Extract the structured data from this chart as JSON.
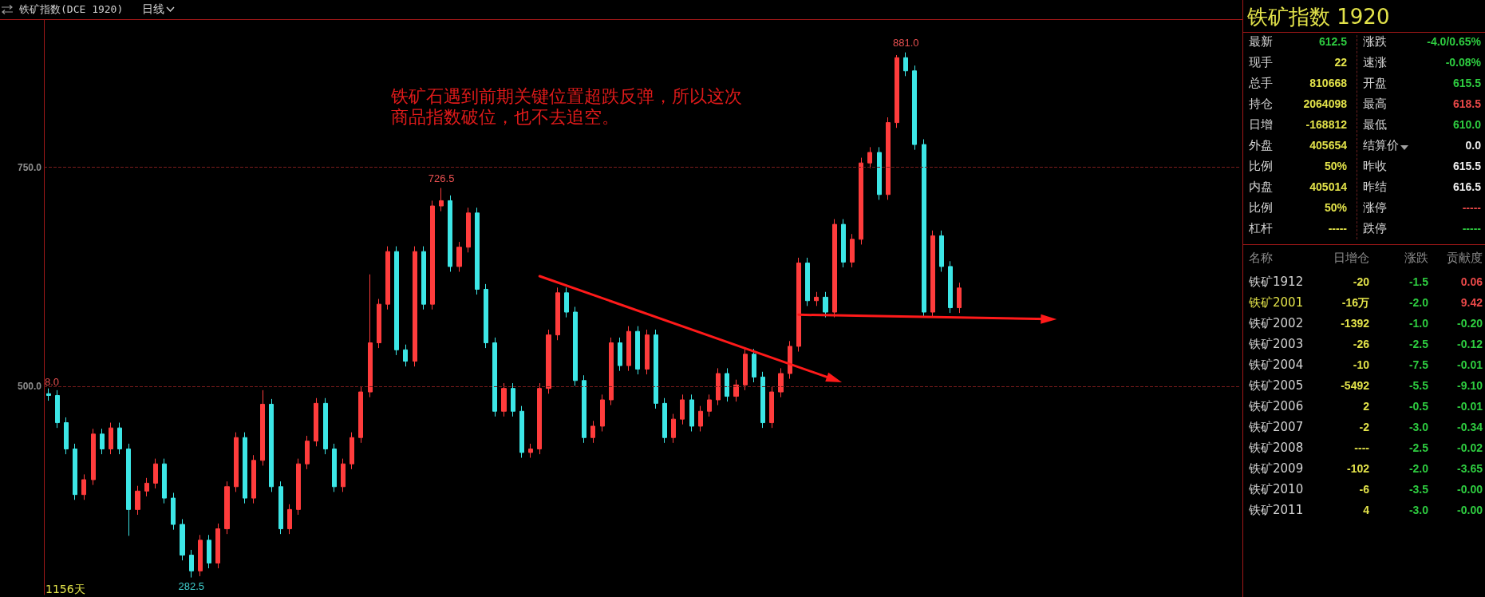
{
  "chart_data": [
    {
      "type": "candlestick",
      "title": "铁矿指数(DCE 1920)",
      "subtitle": "日线",
      "categories": [
        null,
        null,
        null,
        null,
        null,
        null,
        null,
        null,
        null,
        null,
        null,
        null,
        null,
        null,
        null,
        null,
        null,
        null,
        null,
        null,
        null,
        null,
        null,
        null,
        null,
        null,
        null,
        null,
        null,
        null,
        null,
        null,
        null,
        null,
        null,
        null,
        null,
        null,
        null,
        null,
        null,
        null,
        null,
        null,
        null,
        null,
        null,
        null,
        null,
        null,
        null,
        null,
        null,
        null,
        null,
        null,
        null,
        null,
        null,
        null,
        null,
        null,
        null,
        null,
        null,
        null,
        null,
        null,
        null,
        null,
        null,
        null,
        null,
        null,
        null,
        null,
        null,
        null,
        null,
        null,
        null,
        null,
        null,
        null,
        null,
        null,
        null,
        null,
        null,
        null,
        null,
        null,
        null,
        null,
        null,
        null,
        null,
        null,
        null,
        null,
        null,
        null,
        null,
        null,
        null,
        null,
        null,
        null,
        null,
        null,
        null,
        null,
        null,
        null,
        null,
        null,
        null,
        null,
        null,
        null,
        null,
        null,
        null,
        null,
        null,
        null,
        null,
        null,
        null,
        null,
        null,
        null,
        null,
        null
      ],
      "ohlc": [
        [
          492,
          498,
          484,
          490
        ],
        [
          490,
          496,
          453,
          459
        ],
        [
          459,
          465,
          423,
          429
        ],
        [
          429,
          435,
          371,
          377
        ],
        [
          377,
          400,
          371,
          394
        ],
        [
          394,
          452,
          388,
          446
        ],
        [
          446,
          452,
          423,
          429
        ],
        [
          429,
          459,
          423,
          453
        ],
        [
          453,
          459,
          423,
          429
        ],
        [
          429,
          435,
          330,
          360
        ],
        [
          360,
          387,
          354,
          381
        ],
        [
          381,
          396,
          375,
          390
        ],
        [
          390,
          418,
          384,
          412
        ],
        [
          412,
          418,
          367,
          373
        ],
        [
          373,
          379,
          337,
          343
        ],
        [
          343,
          349,
          302,
          308
        ],
        [
          308,
          314,
          282.5,
          290
        ],
        [
          290,
          331,
          284,
          325
        ],
        [
          325,
          331,
          293,
          299
        ],
        [
          299,
          344,
          293,
          338
        ],
        [
          338,
          392,
          332,
          386
        ],
        [
          386,
          448,
          380,
          442
        ],
        [
          442,
          448,
          367,
          373
        ],
        [
          373,
          422,
          367,
          416
        ],
        [
          416,
          496,
          410,
          480
        ],
        [
          480,
          486,
          380,
          386
        ],
        [
          386,
          392,
          332,
          338
        ],
        [
          338,
          366,
          332,
          360
        ],
        [
          360,
          418,
          354,
          412
        ],
        [
          412,
          444,
          406,
          438
        ],
        [
          438,
          487,
          432,
          481
        ],
        [
          481,
          487,
          423,
          429
        ],
        [
          429,
          435,
          380,
          386
        ],
        [
          386,
          418,
          380,
          412
        ],
        [
          412,
          448,
          406,
          442
        ],
        [
          442,
          500,
          436,
          494
        ],
        [
          494,
          628,
          488,
          550
        ],
        [
          550,
          600,
          544,
          594
        ],
        [
          594,
          660,
          588,
          654
        ],
        [
          654,
          660,
          536,
          542
        ],
        [
          542,
          548,
          523,
          529
        ],
        [
          529,
          660,
          523,
          654
        ],
        [
          654,
          660,
          588,
          594
        ],
        [
          594,
          712,
          588,
          706
        ],
        [
          706,
          726.5,
          700,
          712
        ],
        [
          712,
          718,
          631,
          637
        ],
        [
          637,
          665,
          631,
          659
        ],
        [
          659,
          704,
          653,
          698
        ],
        [
          698,
          704,
          605,
          611
        ],
        [
          611,
          617,
          544,
          550
        ],
        [
          550,
          556,
          466,
          472
        ],
        [
          472,
          504,
          466,
          498
        ],
        [
          498,
          504,
          466,
          472
        ],
        [
          472,
          478,
          419,
          425
        ],
        [
          425,
          435,
          419,
          429
        ],
        [
          429,
          504,
          423,
          498
        ],
        [
          498,
          565,
          492,
          559
        ],
        [
          559,
          613,
          553,
          607
        ],
        [
          607,
          613,
          579,
          585
        ],
        [
          585,
          591,
          501,
          507
        ],
        [
          507,
          513,
          436,
          442
        ],
        [
          442,
          461,
          436,
          455
        ],
        [
          455,
          491,
          449,
          485
        ],
        [
          485,
          556,
          479,
          550
        ],
        [
          550,
          556,
          518,
          524
        ],
        [
          524,
          569,
          518,
          563
        ],
        [
          563,
          569,
          514,
          520
        ],
        [
          520,
          565,
          514,
          559
        ],
        [
          559,
          565,
          475,
          481
        ],
        [
          481,
          487,
          436,
          442
        ],
        [
          442,
          469,
          436,
          463
        ],
        [
          463,
          491,
          457,
          485
        ],
        [
          485,
          491,
          449,
          455
        ],
        [
          455,
          478,
          449,
          472
        ],
        [
          472,
          491,
          466,
          485
        ],
        [
          485,
          521,
          479,
          515
        ],
        [
          515,
          521,
          483,
          489
        ],
        [
          489,
          508,
          483,
          502
        ],
        [
          502,
          543,
          496,
          537
        ],
        [
          537,
          543,
          505,
          511
        ],
        [
          511,
          517,
          453,
          459
        ],
        [
          459,
          500,
          453,
          494
        ],
        [
          494,
          521,
          488,
          515
        ],
        [
          515,
          552,
          509,
          546
        ],
        [
          546,
          647,
          540,
          641
        ],
        [
          641,
          647,
          592,
          598
        ],
        [
          598,
          608,
          592,
          602
        ],
        [
          602,
          608,
          579,
          585
        ],
        [
          585,
          691,
          579,
          685
        ],
        [
          685,
          691,
          636,
          642
        ],
        [
          642,
          674,
          636,
          668
        ],
        [
          668,
          761,
          662,
          755
        ],
        [
          755,
          773,
          749,
          767
        ],
        [
          767,
          773,
          713,
          719
        ],
        [
          719,
          807,
          713,
          801
        ],
        [
          801,
          878,
          795,
          875
        ],
        [
          875,
          881,
          854,
          860
        ],
        [
          860,
          866,
          770,
          776
        ],
        [
          776,
          782,
          579,
          585
        ],
        [
          585,
          678,
          579,
          672
        ],
        [
          672,
          678,
          631,
          637
        ],
        [
          637,
          643,
          584,
          590
        ],
        [
          590,
          618.5,
          584,
          612.5
        ],
        null,
        null,
        null,
        null,
        null,
        null,
        null,
        null,
        null,
        null,
        null,
        null,
        null,
        null,
        null,
        null,
        null,
        null,
        null,
        null,
        null,
        null,
        null,
        null,
        null,
        null,
        null,
        null,
        null,
        null,
        null
      ],
      "colors": [
        "#3ce6e6",
        "#3ce6e6",
        "#3ce6e6",
        "#3ce6e6",
        "#ff3c3c",
        "#ff3c3c",
        "#3ce6e6",
        "#ff3c3c",
        "#3ce6e6",
        "#3ce6e6",
        "#ff3c3c",
        "#ff3c3c",
        "#ff3c3c",
        "#3ce6e6",
        "#3ce6e6",
        "#3ce6e6",
        "#3ce6e6",
        "#ff3c3c",
        "#3ce6e6",
        "#ff3c3c",
        "#ff3c3c",
        "#ff3c3c",
        "#3ce6e6",
        "#ff3c3c",
        "#ff3c3c",
        "#3ce6e6",
        "#3ce6e6",
        "#ff3c3c",
        "#ff3c3c",
        "#ff3c3c",
        "#ff3c3c",
        "#3ce6e6",
        "#3ce6e6",
        "#ff3c3c",
        "#ff3c3c",
        "#ff3c3c",
        "#ff3c3c",
        "#ff3c3c",
        "#ff3c3c",
        "#3ce6e6",
        "#3ce6e6",
        "#ff3c3c",
        "#3ce6e6",
        "#ff3c3c",
        "#ff3c3c",
        "#3ce6e6",
        "#ff3c3c",
        "#ff3c3c",
        "#3ce6e6",
        "#3ce6e6",
        "#3ce6e6",
        "#ff3c3c",
        "#3ce6e6",
        "#3ce6e6",
        "#ff3c3c",
        "#ff3c3c",
        "#ff3c3c",
        "#ff3c3c",
        "#3ce6e6",
        "#3ce6e6",
        "#3ce6e6",
        "#ff3c3c",
        "#ff3c3c",
        "#ff3c3c",
        "#3ce6e6",
        "#ff3c3c",
        "#3ce6e6",
        "#ff3c3c",
        "#3ce6e6",
        "#3ce6e6",
        "#ff3c3c",
        "#ff3c3c",
        "#3ce6e6",
        "#ff3c3c",
        "#ff3c3c",
        "#ff3c3c",
        "#3ce6e6",
        "#ff3c3c",
        "#ff3c3c",
        "#3ce6e6",
        "#3ce6e6",
        "#ff3c3c",
        "#ff3c3c",
        "#ff3c3c",
        "#ff3c3c",
        "#3ce6e6",
        "#ff3c3c",
        "#3ce6e6",
        "#ff3c3c",
        "#3ce6e6",
        "#ff3c3c",
        "#ff3c3c",
        "#ff3c3c",
        "#3ce6e6",
        "#ff3c3c",
        "#ff3c3c",
        "#3ce6e6",
        "#3ce6e6",
        "#3ce6e6",
        "#ff3c3c",
        "#3ce6e6",
        "#3ce6e6",
        "#ff3c3c",
        null,
        null,
        null,
        null,
        null,
        null,
        null,
        null,
        null,
        null,
        null,
        null,
        null,
        null,
        null,
        null,
        null,
        null,
        null,
        null,
        null,
        null,
        null,
        null,
        null,
        null,
        null,
        null,
        null,
        null,
        null
      ],
      "series": [
        {
          "type": "line",
          "color": "#ff1a1a",
          "values": [
            null,
            null,
            null,
            null,
            null,
            null,
            null,
            null,
            null,
            null,
            null,
            null,
            null,
            null,
            null,
            null,
            null,
            null,
            null,
            null,
            null,
            null,
            null,
            null,
            null,
            null,
            null,
            null,
            null,
            null,
            null,
            null,
            null,
            null,
            null,
            null,
            null,
            null,
            null,
            null,
            null,
            null,
            null,
            null,
            null,
            null,
            null,
            null,
            null,
            null,
            null,
            null,
            null,
            null,
            null,
            626,
            null,
            null,
            null,
            null,
            null,
            null,
            null,
            null,
            null,
            null,
            null,
            null,
            null,
            null,
            null,
            null,
            null,
            null,
            null,
            null,
            null,
            null,
            null,
            null,
            null,
            null,
            null,
            null,
            null,
            null,
            null,
            null,
            508,
            null,
            null,
            null,
            null,
            null,
            null,
            null,
            null,
            null,
            null,
            null,
            null,
            null,
            null,
            null,
            null,
            null,
            null,
            null,
            null,
            null,
            null,
            null,
            null,
            null,
            null,
            null,
            null,
            null,
            null,
            null,
            null,
            null,
            null,
            null,
            null,
            null,
            null,
            null,
            null,
            null,
            null,
            null,
            null,
            null
          ]
        },
        {
          "type": "line",
          "color": "#ff1a1a",
          "values": [
            null,
            null,
            null,
            null,
            null,
            null,
            null,
            null,
            null,
            null,
            null,
            null,
            null,
            null,
            null,
            null,
            null,
            null,
            null,
            null,
            null,
            null,
            null,
            null,
            null,
            null,
            null,
            null,
            null,
            null,
            null,
            null,
            null,
            null,
            null,
            null,
            null,
            null,
            null,
            null,
            null,
            null,
            null,
            null,
            null,
            null,
            null,
            null,
            null,
            null,
            null,
            null,
            null,
            null,
            null,
            null,
            null,
            null,
            null,
            null,
            null,
            null,
            null,
            null,
            null,
            null,
            null,
            null,
            null,
            null,
            null,
            null,
            null,
            null,
            null,
            null,
            null,
            null,
            null,
            null,
            null,
            null,
            null,
            null,
            582,
            null,
            null,
            null,
            null,
            null,
            null,
            null,
            null,
            null,
            null,
            null,
            null,
            null,
            null,
            null,
            null,
            null,
            null,
            null,
            null,
            null,
            null,
            null,
            null,
            null,
            null,
            null,
            577,
            null,
            null,
            null,
            null,
            null,
            null,
            null,
            null,
            null,
            null,
            null,
            null,
            null,
            null,
            null,
            null,
            null,
            null,
            null,
            null,
            null
          ]
        }
      ],
      "ylim": [
        263,
        918
      ],
      "yticks": [
        {
          "value": 500,
          "label": "500.0"
        },
        {
          "value": 750,
          "label": "750.0"
        }
      ],
      "grid": "y",
      "tick_labels": "y",
      "annotations": [
        "8.0",
        "1156天",
        "铁矿石遇到前期关键位置超跌反弹，所以这次商品指数破位，也不去追空。",
        {
          "text": "726.5",
          "y": 726.5
        },
        {
          "text": "881.0",
          "y": 881
        },
        {
          "text": "282.5",
          "y": 282.5
        }
      ]
    },
    {
      "type": "other",
      "title": "铁矿指数 1920",
      "annotations": [
        "最新",
        "612.5",
        "涨跌",
        "-4.0/0.65%",
        "现手",
        "22",
        "速涨",
        "-0.08%",
        "总手",
        "810668",
        "开盘",
        "615.5",
        "持仓",
        "2064098",
        "最高",
        "618.5",
        "日增",
        "-168812",
        "最低",
        "610.0",
        "外盘",
        "405654",
        "结算价",
        "0.0",
        "比例",
        "50%",
        "昨收",
        "615.5",
        "内盘",
        "405014",
        "昨结",
        "616.5",
        "比例",
        "50%",
        "涨停",
        "-----",
        "杠杆",
        "-----",
        "跌停",
        "-----",
        "名称",
        "日增仓",
        "涨跌",
        "贡献度",
        "铁矿1912",
        "-20",
        "-1.5",
        "0.06",
        "铁矿2001",
        "-16万",
        "-2.0",
        "9.42",
        "铁矿2002",
        "-1392",
        "-1.0",
        "-0.20",
        "铁矿2003",
        "-26",
        "-2.5",
        "-0.12",
        "铁矿2004",
        "-10",
        "-7.5",
        "-0.01",
        "铁矿2005",
        "-5492",
        "-5.5",
        "-9.10",
        "铁矿2006",
        "2",
        "-0.5",
        "-0.01",
        "铁矿2007",
        "-2",
        "-3.0",
        "-0.34",
        "铁矿2008",
        "----",
        "-2.5",
        "-0.02",
        "铁矿2009",
        "-102",
        "-2.0",
        "-3.65",
        "铁矿2010",
        "-6",
        "-3.5",
        "-0.00",
        "铁矿2011",
        "4",
        "-3.0",
        "-0.00"
      ],
      "colors": [
        "#d4d4d4",
        "#2ecc40",
        "#d4d4d4",
        "#2ecc40",
        "#d4d4d4",
        "#e3e34a",
        "#d4d4d4",
        "#2ecc40",
        "#d4d4d4",
        "#e3e34a",
        "#d4d4d4",
        "#2ecc40",
        "#d4d4d4",
        "#e3e34a",
        "#d4d4d4",
        "#e84848",
        "#d4d4d4",
        "#e3e34a",
        "#d4d4d4",
        "#2ecc40",
        "#d4d4d4",
        "#e3e34a",
        "#d4d4d4",
        "#eeeeee",
        "#d4d4d4",
        "#e3e34a",
        "#d4d4d4",
        "#eeeeee",
        "#d4d4d4",
        "#e3e34a",
        "#d4d4d4",
        "#eeeeee",
        "#d4d4d4",
        "#e3e34a",
        "#d4d4d4",
        "#e84848",
        "#d4d4d4",
        "#e3e34a",
        "#d4d4d4",
        "#2ecc40",
        "#8c8c8c",
        "#8c8c8c",
        "#8c8c8c",
        "#8c8c8c",
        "#d4d4d4",
        "#e3e34a",
        "#2ecc40",
        "#e84848",
        "#e3e34a",
        "#e3e34a",
        "#2ecc40",
        "#e84848",
        "#d4d4d4",
        "#e3e34a",
        "#2ecc40",
        "#2ecc40",
        "#d4d4d4",
        "#e3e34a",
        "#2ecc40",
        "#2ecc40",
        "#d4d4d4",
        "#e3e34a",
        "#2ecc40",
        "#2ecc40",
        "#d4d4d4",
        "#e3e34a",
        "#2ecc40",
        "#2ecc40",
        "#d4d4d4",
        "#e3e34a",
        "#2ecc40",
        "#2ecc40",
        "#d4d4d4",
        "#e3e34a",
        "#2ecc40",
        "#2ecc40",
        "#d4d4d4",
        "#e3e34a",
        "#2ecc40",
        "#2ecc40",
        "#d4d4d4",
        "#e3e34a",
        "#2ecc40",
        "#2ecc40",
        "#d4d4d4",
        "#e3e34a",
        "#2ecc40",
        "#2ecc40",
        "#d4d4d4",
        "#e3e34a",
        "#2ecc40",
        "#2ecc40"
      ]
    }
  ]
}
